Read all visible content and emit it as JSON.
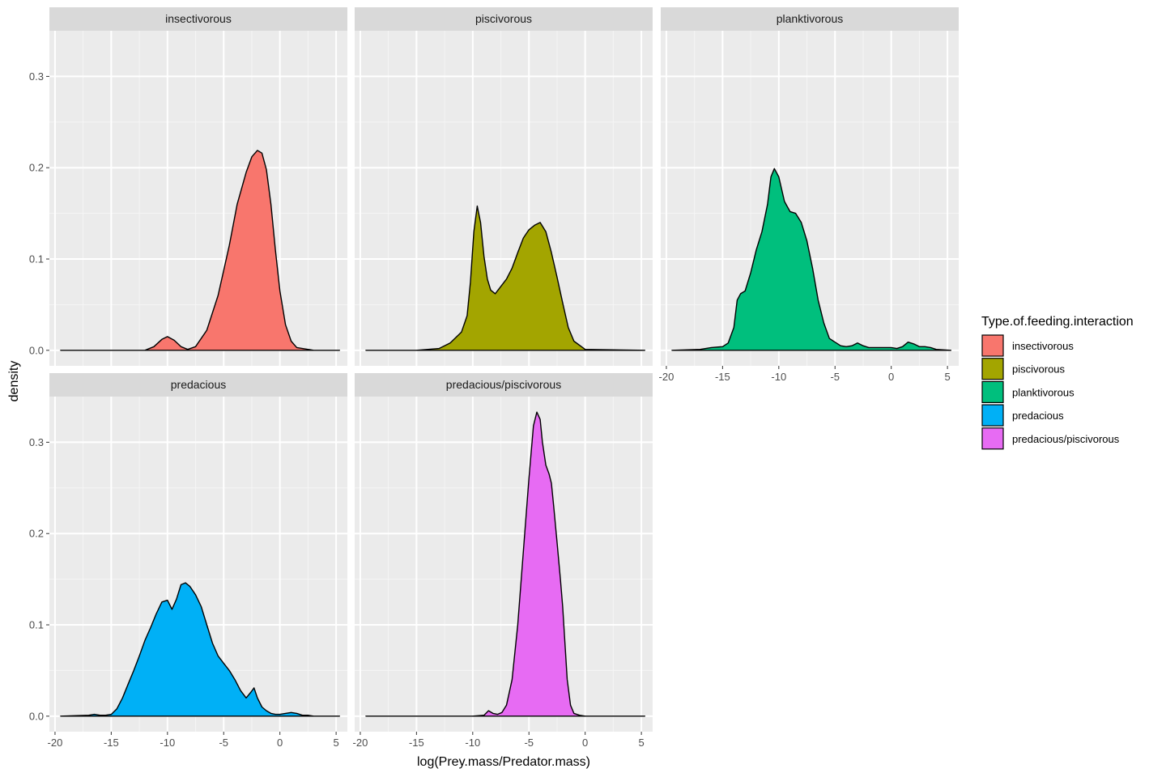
{
  "chart_data": {
    "type": "area",
    "subtype": "faceted-density",
    "xlabel": "log(Prey.mass/Predator.mass)",
    "ylabel": "density",
    "xlim": [
      -20.5,
      6
    ],
    "ylim": [
      -0.017,
      0.35
    ],
    "x_ticks": [
      -20,
      -15,
      -10,
      -5,
      0,
      5
    ],
    "x_tick_labels": [
      "-20",
      "-15",
      "-10",
      "-5",
      "0",
      "5"
    ],
    "y_ticks": [
      0.0,
      0.1,
      0.2,
      0.3
    ],
    "y_tick_labels": [
      "0.0",
      "0.1",
      "0.2",
      "0.3"
    ],
    "grid": true,
    "legend": {
      "title": "Type.of.feeding.interaction",
      "position": "right",
      "entries": [
        {
          "label": "insectivorous",
          "color": "#F8766D"
        },
        {
          "label": "piscivorous",
          "color": "#A3A500"
        },
        {
          "label": "planktivorous",
          "color": "#00BF7D"
        },
        {
          "label": "predacious",
          "color": "#00B0F6"
        },
        {
          "label": "predacious/piscivorous",
          "color": "#E76BF3"
        }
      ]
    },
    "facets": [
      {
        "label": "insectivorous",
        "color": "#F8766D",
        "x": [
          -19.5,
          -12,
          -11.2,
          -10.5,
          -10,
          -9.4,
          -8.8,
          -8.2,
          -7.5,
          -6.5,
          -5.5,
          -4.5,
          -3.8,
          -3.0,
          -2.5,
          -2.0,
          -1.6,
          -1.2,
          -0.8,
          -0.4,
          0.0,
          0.5,
          1.0,
          1.5,
          3.0,
          5.3
        ],
        "y": [
          0.0,
          0.0,
          0.004,
          0.012,
          0.015,
          0.011,
          0.004,
          0.001,
          0.004,
          0.022,
          0.06,
          0.115,
          0.16,
          0.195,
          0.212,
          0.219,
          0.216,
          0.198,
          0.16,
          0.11,
          0.065,
          0.028,
          0.01,
          0.003,
          0.0,
          0.0
        ]
      },
      {
        "label": "piscivorous",
        "color": "#A3A500",
        "x": [
          -19.5,
          -15,
          -13,
          -12,
          -11,
          -10.5,
          -10.2,
          -9.9,
          -9.6,
          -9.3,
          -9.0,
          -8.7,
          -8.4,
          -8.0,
          -7.5,
          -7.0,
          -6.5,
          -6.0,
          -5.5,
          -5.0,
          -4.5,
          -4.0,
          -3.5,
          -3.0,
          -2.5,
          -2.0,
          -1.5,
          -1.0,
          0.0,
          5.3
        ],
        "y": [
          0.0,
          0.0,
          0.002,
          0.008,
          0.02,
          0.038,
          0.075,
          0.13,
          0.158,
          0.14,
          0.103,
          0.078,
          0.066,
          0.062,
          0.07,
          0.078,
          0.09,
          0.107,
          0.123,
          0.132,
          0.137,
          0.14,
          0.13,
          0.107,
          0.08,
          0.052,
          0.025,
          0.01,
          0.001,
          0.0
        ]
      },
      {
        "label": "planktivorous",
        "color": "#00BF7D",
        "x": [
          -19.5,
          -17,
          -16,
          -15,
          -14.5,
          -14,
          -13.7,
          -13.4,
          -13.0,
          -12.5,
          -12.0,
          -11.5,
          -11.0,
          -10.7,
          -10.4,
          -10.0,
          -9.5,
          -9.0,
          -8.5,
          -8.0,
          -7.5,
          -7.0,
          -6.5,
          -6.0,
          -5.5,
          -5.0,
          -4.5,
          -4.0,
          -3.5,
          -3.0,
          -2.5,
          -2.0,
          -1.5,
          -1.0,
          -0.5,
          0.0,
          0.5,
          1.0,
          1.5,
          2.0,
          2.5,
          3.0,
          3.5,
          4.0,
          5.3
        ],
        "y": [
          0.0,
          0.001,
          0.003,
          0.004,
          0.008,
          0.025,
          0.055,
          0.062,
          0.065,
          0.085,
          0.11,
          0.13,
          0.16,
          0.19,
          0.199,
          0.19,
          0.163,
          0.152,
          0.15,
          0.14,
          0.12,
          0.09,
          0.055,
          0.03,
          0.013,
          0.009,
          0.005,
          0.004,
          0.005,
          0.008,
          0.005,
          0.003,
          0.003,
          0.003,
          0.003,
          0.003,
          0.002,
          0.004,
          0.009,
          0.007,
          0.004,
          0.004,
          0.003,
          0.001,
          0.0
        ]
      },
      {
        "label": "predacious",
        "color": "#00B0F6",
        "x": [
          -19.5,
          -17,
          -16.5,
          -16,
          -15.5,
          -15,
          -14.5,
          -14,
          -13.5,
          -13,
          -12.5,
          -12,
          -11.5,
          -11,
          -10.5,
          -10.0,
          -9.6,
          -9.2,
          -8.8,
          -8.4,
          -8.0,
          -7.5,
          -7.0,
          -6.5,
          -6.0,
          -5.5,
          -5.0,
          -4.5,
          -4.0,
          -3.5,
          -3.0,
          -2.6,
          -2.3,
          -2.0,
          -1.6,
          -1.2,
          -0.8,
          -0.4,
          0.0,
          0.5,
          1.0,
          1.5,
          2.0,
          2.5,
          3.0,
          5.3
        ],
        "y": [
          0.0,
          0.001,
          0.002,
          0.001,
          0.001,
          0.002,
          0.008,
          0.02,
          0.035,
          0.05,
          0.066,
          0.083,
          0.097,
          0.112,
          0.125,
          0.127,
          0.117,
          0.128,
          0.144,
          0.146,
          0.142,
          0.133,
          0.12,
          0.1,
          0.08,
          0.066,
          0.058,
          0.05,
          0.04,
          0.028,
          0.02,
          0.026,
          0.031,
          0.02,
          0.01,
          0.006,
          0.003,
          0.002,
          0.002,
          0.003,
          0.004,
          0.003,
          0.001,
          0.001,
          0.0,
          0.0
        ]
      },
      {
        "label": "predacious/piscivorous",
        "color": "#E76BF3",
        "x": [
          -19.5,
          -10,
          -9.0,
          -8.6,
          -8.2,
          -7.8,
          -7.4,
          -7.0,
          -6.5,
          -6.0,
          -5.5,
          -5.0,
          -4.6,
          -4.3,
          -4.0,
          -3.8,
          -3.5,
          -3.2,
          -3.0,
          -2.8,
          -2.5,
          -2.2,
          -2.0,
          -1.8,
          -1.6,
          -1.3,
          -1.0,
          -0.5,
          0.0,
          5.3
        ],
        "y": [
          0.0,
          0.0,
          0.001,
          0.006,
          0.003,
          0.002,
          0.004,
          0.012,
          0.04,
          0.1,
          0.18,
          0.26,
          0.318,
          0.333,
          0.325,
          0.3,
          0.275,
          0.265,
          0.255,
          0.23,
          0.19,
          0.15,
          0.12,
          0.08,
          0.04,
          0.012,
          0.003,
          0.001,
          0.0,
          0.0
        ]
      }
    ]
  }
}
